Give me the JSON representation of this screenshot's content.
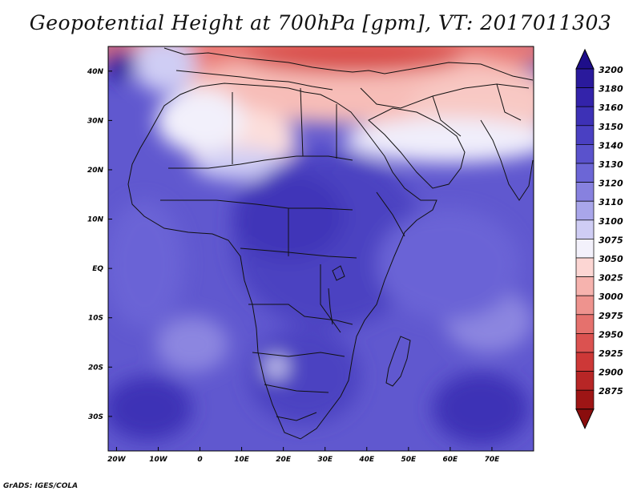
{
  "title": "Geopotential Height at 700hPa [gpm], VT: 2017011303",
  "credit": "GrADS: IGES/COLA",
  "map": {
    "lon_labels": [
      "20W",
      "10W",
      "0",
      "10E",
      "20E",
      "30E",
      "40E",
      "50E",
      "60E",
      "70E"
    ],
    "lon_values": [
      -20,
      -10,
      0,
      10,
      20,
      30,
      40,
      50,
      60,
      70
    ],
    "lat_labels": [
      "40N",
      "30N",
      "20N",
      "10N",
      "EQ",
      "10S",
      "20S",
      "30S"
    ],
    "lat_values": [
      40,
      30,
      20,
      10,
      0,
      -10,
      -20,
      -30
    ],
    "lon_range": [
      -22,
      80
    ],
    "lat_range": [
      -37,
      45
    ]
  },
  "colorbar": {
    "levels": [
      "3200",
      "3180",
      "3160",
      "3150",
      "3140",
      "3130",
      "3120",
      "3110",
      "3100",
      "3075",
      "3050",
      "3025",
      "3000",
      "2975",
      "2950",
      "2925",
      "2900",
      "2875"
    ],
    "colors": [
      "#2a1a9c",
      "#3323aa",
      "#3d31b6",
      "#4a40c2",
      "#5a52cc",
      "#6c66d6",
      "#8781df",
      "#a9a6ea",
      "#cfcdf4",
      "#f3f1fb",
      "#fcd6d3",
      "#f6b3ae",
      "#ee938e",
      "#e5716d",
      "#db5250",
      "#cd3837",
      "#b72626",
      "#9e1515"
    ],
    "top_arrow_color": "#1e0e8a",
    "bottom_arrow_color": "#8a0d0d"
  }
}
